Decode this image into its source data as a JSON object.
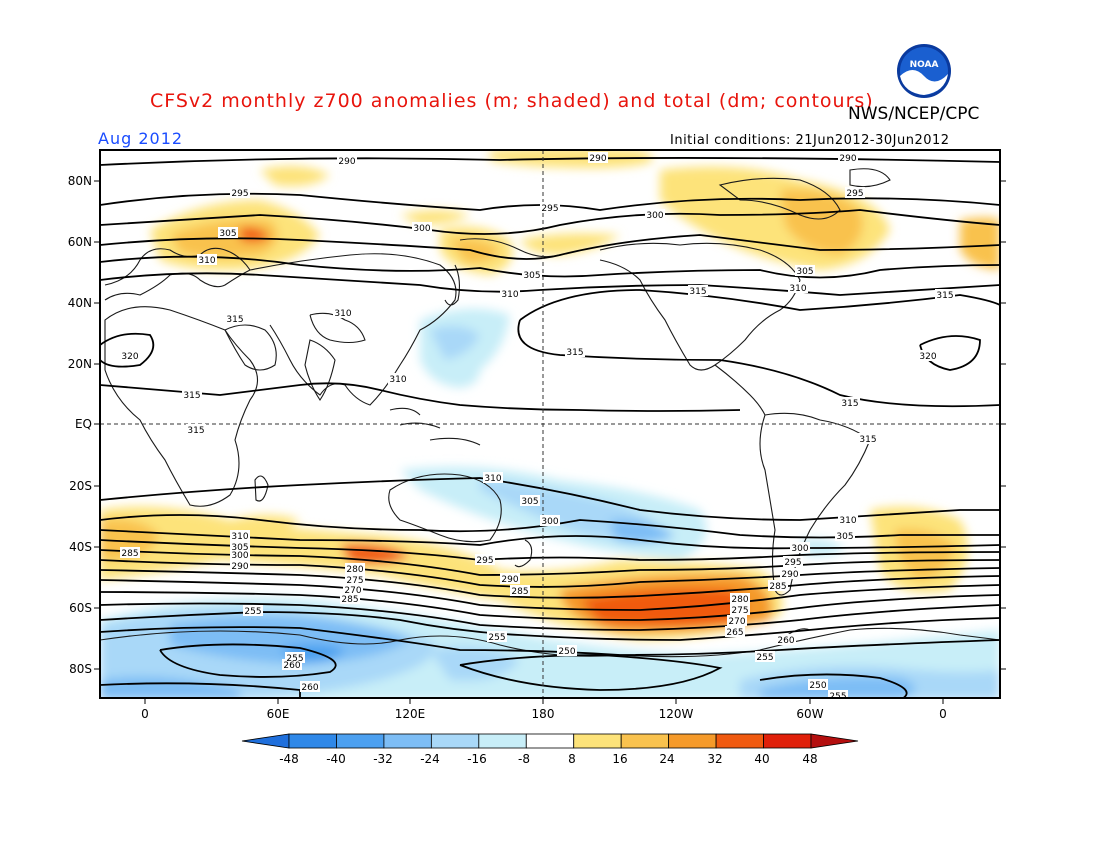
{
  "title": "CFSv2 monthly z700 anomalies (m; shaded) and total (dm; contours)",
  "agency": "NWS/NCEP/CPC",
  "month": "Aug 2012",
  "initial_conditions": "Initial conditions: 21Jun2012-30Jun2012",
  "logo_text": "NOAA",
  "lat_labels": [
    "80N",
    "60N",
    "40N",
    "20N",
    "EQ",
    "20S",
    "40S",
    "60S",
    "80S"
  ],
  "lon_labels": [
    "0",
    "60E",
    "120E",
    "180",
    "120W",
    "60W",
    "0"
  ],
  "colorbar": {
    "labels": [
      "-48",
      "-40",
      "-32",
      "-24",
      "-16",
      "-8",
      "8",
      "16",
      "24",
      "32",
      "40",
      "48"
    ],
    "colors": [
      "#1f6fdc",
      "#2f88e8",
      "#4ca0f0",
      "#7dbdf5",
      "#a9d8f8",
      "#c8eef8",
      "#ffffff",
      "#fde37a",
      "#f9c24e",
      "#f59a2a",
      "#f05a10",
      "#e0200a",
      "#b40f0f"
    ]
  },
  "contour_labels": {
    "c290": "290",
    "c295": "295",
    "c300": "300",
    "c305": "305",
    "c310": "310",
    "c315": "315",
    "c320": "320",
    "c285": "285",
    "c280": "280",
    "c275": "275",
    "c270": "270",
    "c265": "265",
    "c260": "260",
    "c255": "255",
    "c250": "250"
  }
}
